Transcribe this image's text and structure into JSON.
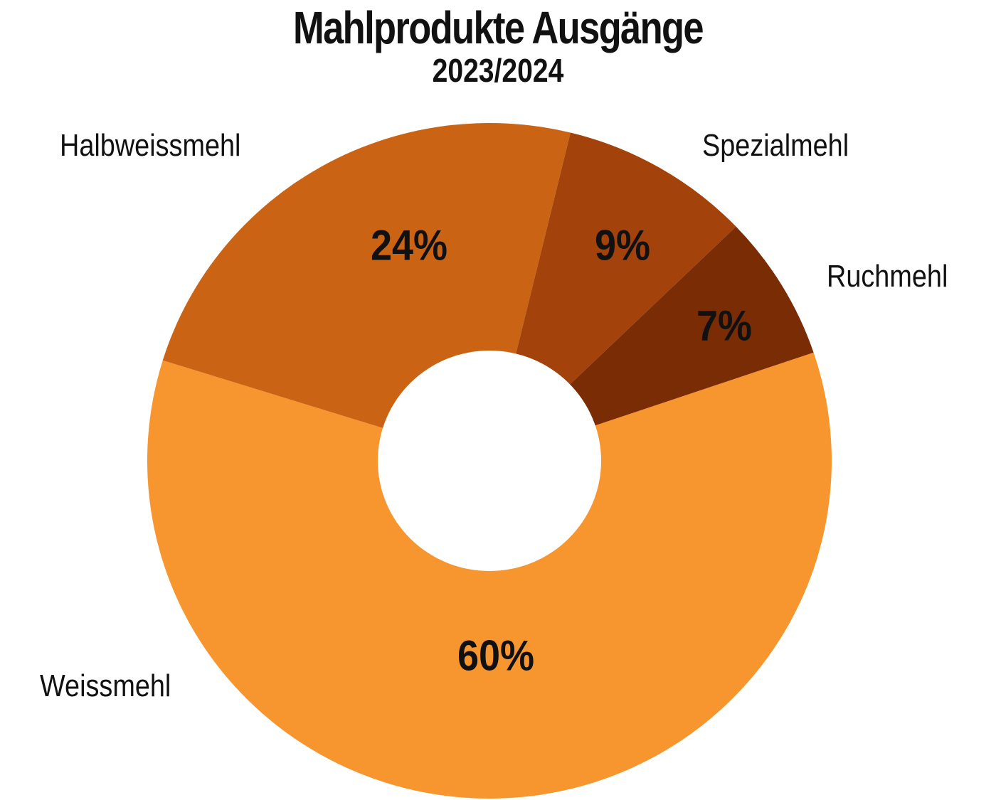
{
  "chart_data": {
    "type": "pie",
    "variant": "donut",
    "title": "Mahlprodukte Ausgänge",
    "subtitle": "2023/2024",
    "categories": [
      "Weissmehl",
      "Halbweissmehl",
      "Spezialmehl",
      "Ruchmehl"
    ],
    "values": [
      60,
      24,
      9,
      7
    ],
    "unit": "%",
    "data_labels": [
      "60%",
      "24%",
      "9%",
      "7%"
    ],
    "colors": [
      "#F7952F",
      "#CA6414",
      "#A3420A",
      "#7A2C05"
    ],
    "legend": "none (labels placed outside slices)"
  },
  "header": {
    "title": "Mahlprodukte Ausgänge",
    "subtitle": "2023/2024"
  },
  "labels": {
    "weissmehl": "Weissmehl",
    "halbweissmehl": "Halbweissmehl",
    "spezialmehl": "Spezialmehl",
    "ruchmehl": "Ruchmehl"
  },
  "pct": {
    "weissmehl": "60%",
    "halbweissmehl": "24%",
    "spezialmehl": "9%",
    "ruchmehl": "7%"
  }
}
